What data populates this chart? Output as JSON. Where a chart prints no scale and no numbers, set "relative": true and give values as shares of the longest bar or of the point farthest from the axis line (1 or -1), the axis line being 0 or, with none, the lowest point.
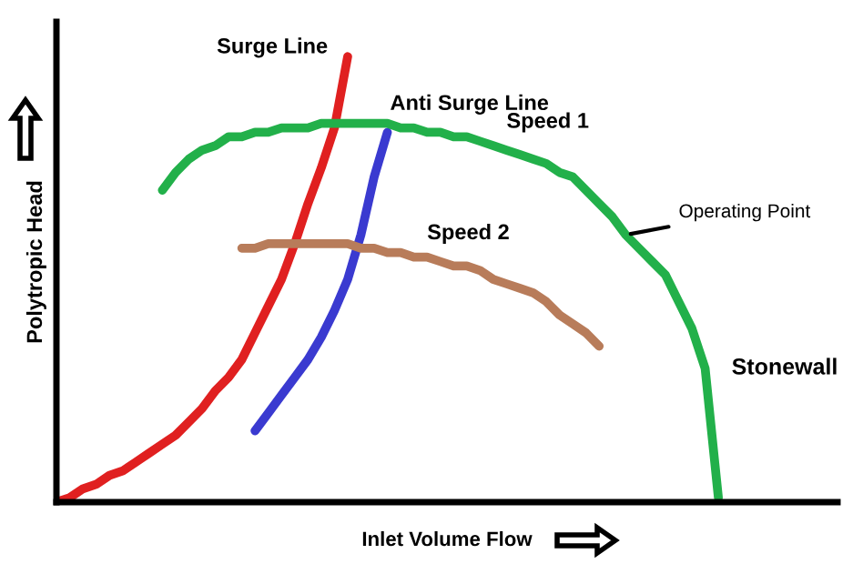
{
  "chart_data": {
    "type": "line",
    "relative": true,
    "xlabel": "Inlet Volume Flow",
    "ylabel": "Polytropic Head",
    "line_style": "solid",
    "categories": [
      null,
      null,
      null,
      null,
      null,
      null,
      null,
      null,
      null,
      null,
      null,
      null,
      null,
      null,
      null,
      null,
      null,
      null,
      null,
      null,
      null,
      null,
      null,
      null,
      null,
      null,
      null,
      null,
      null,
      null,
      null,
      null,
      null,
      null,
      null,
      null,
      null,
      null,
      null,
      null,
      null,
      null,
      null,
      null,
      null,
      null,
      null,
      null,
      null,
      null,
      null,
      null,
      null,
      null,
      null,
      null,
      null,
      null,
      null,
      null
    ],
    "series": [
      {
        "name": "Surge Line",
        "color": "#e02020",
        "values": [
          0,
          0.01,
          0.03,
          0.04,
          0.06,
          0.07,
          0.09,
          0.11,
          0.13,
          0.15,
          0.18,
          0.21,
          0.25,
          0.28,
          0.32,
          0.38,
          0.44,
          0.5,
          0.58,
          0.67,
          0.75,
          0.84,
          1.0,
          null,
          null,
          null,
          null,
          null,
          null,
          null,
          null,
          null,
          null,
          null,
          null,
          null,
          null,
          null,
          null,
          null,
          null,
          null,
          null,
          null,
          null,
          null,
          null,
          null,
          null,
          null,
          null,
          null,
          null,
          null,
          null,
          null,
          null,
          null,
          null,
          null
        ]
      },
      {
        "name": "Anti Surge Line",
        "color": "#3a3ad0",
        "values": [
          null,
          null,
          null,
          null,
          null,
          null,
          null,
          null,
          null,
          null,
          null,
          null,
          null,
          null,
          null,
          0.16,
          0.2,
          0.24,
          0.28,
          0.32,
          0.37,
          0.43,
          0.5,
          0.6,
          0.73,
          0.83,
          null,
          null,
          null,
          null,
          null,
          null,
          null,
          null,
          null,
          null,
          null,
          null,
          null,
          null,
          null,
          null,
          null,
          null,
          null,
          null,
          null,
          null,
          null,
          null,
          null,
          null,
          null,
          null,
          null,
          null,
          null,
          null,
          null,
          null
        ]
      },
      {
        "name": "Speed 1",
        "color": "#22b04a",
        "values": [
          null,
          null,
          null,
          null,
          null,
          null,
          null,
          null,
          0.7,
          0.74,
          0.77,
          0.79,
          0.8,
          0.82,
          0.82,
          0.83,
          0.83,
          0.84,
          0.84,
          0.84,
          0.85,
          0.85,
          0.85,
          0.85,
          0.85,
          0.85,
          0.84,
          0.84,
          0.83,
          0.83,
          0.82,
          0.82,
          0.81,
          0.8,
          0.79,
          0.78,
          0.77,
          0.76,
          0.74,
          0.73,
          0.7,
          0.67,
          0.64,
          0.6,
          0.57,
          0.54,
          0.51,
          0.45,
          0.39,
          0.3,
          0.01,
          null,
          null,
          null,
          null,
          null,
          null,
          null,
          null,
          null
        ]
      },
      {
        "name": "Speed 2",
        "color": "#b87c5a",
        "values": [
          null,
          null,
          null,
          null,
          null,
          null,
          null,
          null,
          null,
          null,
          null,
          null,
          null,
          null,
          0.57,
          0.57,
          0.58,
          0.58,
          0.58,
          0.58,
          0.58,
          0.58,
          0.58,
          0.57,
          0.57,
          0.56,
          0.56,
          0.55,
          0.55,
          0.54,
          0.53,
          0.53,
          0.52,
          0.5,
          0.49,
          0.48,
          0.47,
          0.45,
          0.42,
          0.4,
          0.38,
          0.35,
          null,
          null,
          null,
          null,
          null,
          null,
          null,
          null,
          null,
          null,
          null,
          null,
          null,
          null,
          null,
          null,
          null,
          null
        ]
      }
    ],
    "annotations": [
      "Operating Point",
      "Stonewall"
    ]
  }
}
